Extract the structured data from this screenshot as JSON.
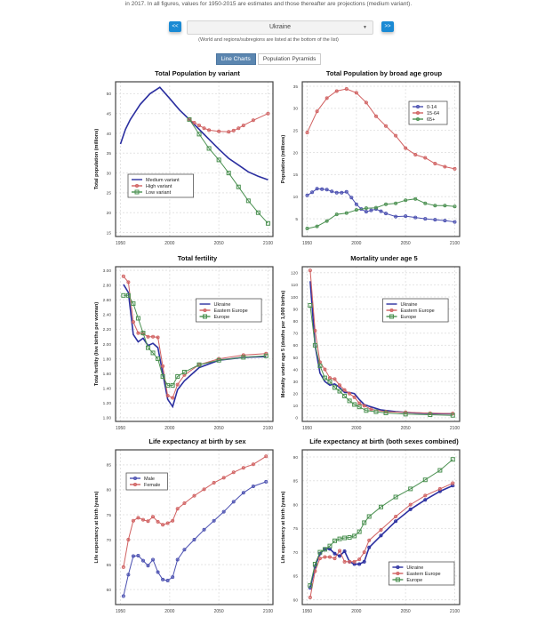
{
  "header": {
    "note": "in 2017. In all figures, values for 1950-2015 are estimates and those thereafter are projections (medium variant).",
    "prev_label": "<<",
    "next_label": ">>",
    "country_selected": "Ukraine",
    "hint": "(World and regions/subregions are listed at the bottom of the list)",
    "tabs": [
      {
        "label": "Line Charts",
        "active": true
      },
      {
        "label": "Population Pyramids",
        "active": false
      }
    ],
    "accent": "#1a8ad4"
  },
  "chart_data": [
    {
      "type": "line",
      "title": "Total Population by variant",
      "ylabel": "Total population (millions)",
      "xlim": [
        1945,
        2105
      ],
      "ylim": [
        14,
        53
      ],
      "xticks": [
        1950,
        2000,
        2050,
        2100
      ],
      "yticks": [
        15,
        20,
        25,
        30,
        35,
        40,
        45,
        50
      ],
      "grid": true,
      "legend": "bottom-left",
      "series": [
        {
          "name": "Medium variant",
          "color": "#2b2fa0",
          "marker": "none",
          "x": [
            1950,
            1955,
            1960,
            1970,
            1980,
            1990,
            2000,
            2010,
            2020,
            2030,
            2040,
            2050,
            2060,
            2070,
            2080,
            2090,
            2100
          ],
          "y": [
            37.3,
            41,
            43.5,
            47.3,
            50,
            51.6,
            48.8,
            45.9,
            43.5,
            41,
            38.5,
            36,
            33.7,
            32,
            30.3,
            29.2,
            28.3
          ]
        },
        {
          "name": "High variant",
          "color": "#d06060",
          "marker": "circle",
          "x": [
            2020,
            2025,
            2030,
            2035,
            2040,
            2050,
            2060,
            2065,
            2070,
            2075,
            2085,
            2100
          ],
          "y": [
            43.5,
            42.7,
            42,
            41.3,
            40.8,
            40.5,
            40.4,
            40.7,
            41.3,
            42,
            43.3,
            45
          ]
        },
        {
          "name": "Low variant",
          "color": "#4a9050",
          "marker": "square",
          "x": [
            2020,
            2030,
            2040,
            2050,
            2060,
            2070,
            2080,
            2090,
            2100
          ],
          "y": [
            43.5,
            39.8,
            36.2,
            33.3,
            30,
            26.5,
            23,
            20,
            17.3
          ]
        }
      ]
    },
    {
      "type": "line",
      "title": "Total Population by broad age group",
      "ylabel": "Population (millions)",
      "xlim": [
        1945,
        2105
      ],
      "ylim": [
        1,
        36
      ],
      "xticks": [
        1950,
        2000,
        2050,
        2100
      ],
      "yticks": [
        5,
        10,
        15,
        20,
        25,
        30,
        35
      ],
      "grid": true,
      "legend": "top-right",
      "series": [
        {
          "name": "0-14",
          "color": "#4a4fb0",
          "marker": "circle",
          "x": [
            1950,
            1955,
            1960,
            1965,
            1970,
            1975,
            1980,
            1985,
            1990,
            1995,
            2000,
            2005,
            2010,
            2015,
            2020,
            2025,
            2030,
            2040,
            2050,
            2060,
            2070,
            2080,
            2090,
            2100
          ],
          "y": [
            10.3,
            11,
            11.8,
            11.7,
            11.6,
            11.2,
            10.9,
            10.9,
            11.1,
            9.8,
            8.3,
            7.2,
            6.6,
            6.9,
            7.2,
            6.7,
            6.2,
            5.5,
            5.6,
            5.3,
            5,
            4.8,
            4.6,
            4.3
          ]
        },
        {
          "name": "15-64",
          "color": "#d06060",
          "marker": "circle",
          "x": [
            1950,
            1960,
            1970,
            1980,
            1990,
            2000,
            2010,
            2020,
            2030,
            2040,
            2050,
            2060,
            2070,
            2080,
            2090,
            2100
          ],
          "y": [
            24.5,
            29.3,
            32.3,
            33.9,
            34.4,
            33.5,
            31.3,
            28.2,
            26,
            23.8,
            21,
            19.5,
            18.8,
            17.5,
            16.8,
            16.3
          ]
        },
        {
          "name": "65+",
          "color": "#4a9050",
          "marker": "circle",
          "x": [
            1950,
            1960,
            1970,
            1980,
            1990,
            2000,
            2010,
            2020,
            2030,
            2040,
            2050,
            2060,
            2070,
            2080,
            2090,
            2100
          ],
          "y": [
            2.8,
            3.3,
            4.5,
            6,
            6.3,
            7,
            7.4,
            7.5,
            8.3,
            8.5,
            9.2,
            9.5,
            8.5,
            8,
            8,
            7.8
          ]
        }
      ]
    },
    {
      "type": "line",
      "title": "Total fertility",
      "ylabel": "Total fertility (live births per woman)",
      "xlim": [
        1945,
        2105
      ],
      "ylim": [
        0.95,
        3.05
      ],
      "xticks": [
        1950,
        2000,
        2050,
        2100
      ],
      "yticks": [
        "1.00",
        "1.20",
        "1.40",
        "1.60",
        "1.80",
        "2.00",
        "2.20",
        "2.40",
        "2.60",
        "2.80",
        "3.00"
      ],
      "grid": true,
      "legend": "top-right",
      "series": [
        {
          "name": "Ukraine",
          "color": "#2b2fa0",
          "marker": "none",
          "x": [
            1953,
            1958,
            1963,
            1968,
            1973,
            1978,
            1983,
            1988,
            1993,
            1998,
            2003,
            2008,
            2015,
            2030,
            2050,
            2075,
            2098
          ],
          "y": [
            2.81,
            2.7,
            2.13,
            2.03,
            2.08,
            1.98,
            2.01,
            1.95,
            1.6,
            1.25,
            1.15,
            1.38,
            1.5,
            1.68,
            1.78,
            1.82,
            1.83
          ]
        },
        {
          "name": "Eastern Europe",
          "color": "#d06060",
          "marker": "circle",
          "x": [
            1953,
            1958,
            1963,
            1968,
            1973,
            1978,
            1983,
            1988,
            1993,
            1998,
            2003,
            2008,
            2015,
            2030,
            2050,
            2075,
            2098
          ],
          "y": [
            2.92,
            2.84,
            2.3,
            2.15,
            2.14,
            2.1,
            2.1,
            2.09,
            1.7,
            1.3,
            1.27,
            1.45,
            1.58,
            1.72,
            1.8,
            1.85,
            1.87
          ]
        },
        {
          "name": "Europe",
          "color": "#4a9050",
          "marker": "square",
          "x": [
            1953,
            1958,
            1963,
            1968,
            1973,
            1978,
            1983,
            1988,
            1993,
            1998,
            2003,
            2008,
            2015,
            2030,
            2050,
            2075,
            2098
          ],
          "y": [
            2.66,
            2.66,
            2.55,
            2.35,
            2.15,
            1.95,
            1.88,
            1.8,
            1.56,
            1.44,
            1.44,
            1.56,
            1.62,
            1.72,
            1.78,
            1.82,
            1.84
          ]
        }
      ]
    },
    {
      "type": "line",
      "title": "Mortality under age 5",
      "ylabel": "Mortality under age 5 (deaths per 1,000 births)",
      "xlim": [
        1945,
        2105
      ],
      "ylim": [
        -3,
        125
      ],
      "xticks": [
        1950,
        2000,
        2050,
        2100
      ],
      "yticks": [
        0,
        10,
        20,
        30,
        40,
        50,
        60,
        70,
        80,
        90,
        100,
        110,
        120
      ],
      "grid": true,
      "legend": "top-right",
      "series": [
        {
          "name": "Ukraine",
          "color": "#2b2fa0",
          "marker": "none",
          "x": [
            1953,
            1958,
            1963,
            1968,
            1973,
            1978,
            1983,
            1988,
            1993,
            1998,
            2003,
            2008,
            2015,
            2025,
            2040,
            2060,
            2080,
            2098
          ],
          "y": [
            113,
            60,
            37,
            30,
            27,
            28,
            25,
            21,
            21,
            20,
            15,
            11,
            9,
            6.5,
            5,
            4,
            3.5,
            3.3
          ]
        },
        {
          "name": "Eastern Europe",
          "color": "#d06060",
          "marker": "circle",
          "x": [
            1953,
            1958,
            1963,
            1968,
            1973,
            1978,
            1983,
            1988,
            1993,
            1998,
            2003,
            2008,
            2015,
            2030,
            2050,
            2075,
            2098
          ],
          "y": [
            122,
            72,
            46,
            40,
            33,
            32,
            27,
            23,
            20,
            17,
            12,
            10,
            7,
            5,
            4.5,
            3.8,
            3.5
          ]
        },
        {
          "name": "Europe",
          "color": "#4a9050",
          "marker": "square",
          "x": [
            1953,
            1958,
            1963,
            1968,
            1973,
            1978,
            1983,
            1988,
            1993,
            1998,
            2003,
            2010,
            2020,
            2030,
            2050,
            2075,
            2098
          ],
          "y": [
            93,
            60,
            43,
            33,
            30,
            25,
            22,
            18,
            14,
            11,
            9,
            6,
            5,
            4,
            3,
            2.5,
            2
          ]
        }
      ]
    },
    {
      "type": "line",
      "title": "Life expectancy at birth by sex",
      "ylabel": "Life expectancy at birth (years)",
      "xlim": [
        1945,
        2105
      ],
      "ylim": [
        57,
        88
      ],
      "xticks": [
        1950,
        2000,
        2050,
        2100
      ],
      "yticks": [
        60,
        65,
        70,
        75,
        80,
        85
      ],
      "grid": true,
      "legend": "top-left",
      "series": [
        {
          "name": "Male",
          "color": "#4a4fb0",
          "marker": "circle",
          "x": [
            1953,
            1958,
            1963,
            1968,
            1973,
            1978,
            1983,
            1988,
            1993,
            1998,
            2003,
            2008,
            2015,
            2025,
            2035,
            2045,
            2055,
            2065,
            2075,
            2085,
            2098
          ],
          "y": [
            58.7,
            63,
            66.7,
            66.8,
            65.8,
            64.8,
            66,
            63.5,
            62,
            61.8,
            62.5,
            66,
            68,
            70,
            72,
            73.8,
            75.6,
            77.6,
            79.4,
            80.7,
            81.6
          ]
        },
        {
          "name": "Female",
          "color": "#d06060",
          "marker": "circle",
          "x": [
            1953,
            1958,
            1963,
            1968,
            1973,
            1978,
            1983,
            1988,
            1993,
            1998,
            2003,
            2008,
            2015,
            2025,
            2035,
            2045,
            2055,
            2065,
            2075,
            2085,
            2098
          ],
          "y": [
            64.5,
            70,
            73.8,
            74.4,
            74,
            73.7,
            74.6,
            73.6,
            73,
            73.3,
            73.8,
            76.2,
            77.3,
            78.8,
            80.1,
            81.4,
            82.4,
            83.5,
            84.4,
            85.1,
            86.7
          ]
        }
      ]
    },
    {
      "type": "line",
      "title": "Life expectancy at birth (both sexes combined)",
      "ylabel": "Life expectancy at birth (years)",
      "xlim": [
        1945,
        2105
      ],
      "ylim": [
        59,
        91.5
      ],
      "xticks": [
        1950,
        2000,
        2050,
        2100
      ],
      "yticks": [
        60,
        65,
        70,
        75,
        80,
        85,
        90
      ],
      "grid": true,
      "legend": "bottom-right",
      "series": [
        {
          "name": "Ukraine",
          "color": "#2b2fa0",
          "marker": "circle",
          "x": [
            1953,
            1958,
            1963,
            1968,
            1973,
            1978,
            1983,
            1988,
            1993,
            1998,
            2003,
            2008,
            2013,
            2025,
            2040,
            2055,
            2070,
            2085,
            2098
          ],
          "y": [
            62.5,
            67,
            69.7,
            70.7,
            70.7,
            69.7,
            69.2,
            70.2,
            68,
            67.5,
            67.5,
            68,
            71,
            73.5,
            76.5,
            79,
            81,
            82.8,
            84
          ]
        },
        {
          "name": "Eastern Europe",
          "color": "#d06060",
          "marker": "circle",
          "x": [
            1953,
            1958,
            1963,
            1968,
            1973,
            1978,
            1983,
            1988,
            1993,
            1998,
            2003,
            2008,
            2013,
            2025,
            2040,
            2055,
            2070,
            2085,
            2098
          ],
          "y": [
            60.5,
            66,
            68.7,
            69,
            69,
            68.7,
            70.3,
            68,
            68,
            68,
            68.5,
            70,
            72.5,
            74.7,
            77.5,
            80,
            81.9,
            83.3,
            84.5
          ]
        },
        {
          "name": "Europe",
          "color": "#4a9050",
          "marker": "square",
          "x": [
            1953,
            1958,
            1963,
            1968,
            1973,
            1978,
            1983,
            1988,
            1993,
            1998,
            2003,
            2008,
            2013,
            2025,
            2040,
            2055,
            2070,
            2085,
            2098
          ],
          "y": [
            63,
            67.5,
            70,
            70.6,
            71.3,
            72.4,
            72.8,
            73,
            73.1,
            73.4,
            74.3,
            76.2,
            77.5,
            79.5,
            81.6,
            83.3,
            85.2,
            87.2,
            89.5
          ]
        }
      ]
    }
  ]
}
